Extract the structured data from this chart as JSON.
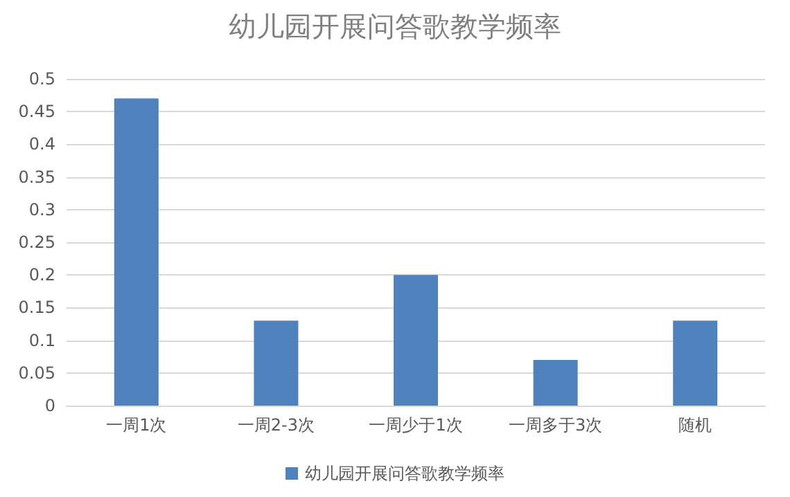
{
  "chart_data": {
    "type": "bar",
    "title": "幼儿园开展问答歌教学频率",
    "categories": [
      "一周1次",
      "一周2-3次",
      "一周少于1次",
      "一周多于3次",
      "随机"
    ],
    "series": [
      {
        "name": "幼儿园开展问答歌教学频率",
        "color": "#4f81bd",
        "values": [
          0.47,
          0.13,
          0.2,
          0.07,
          0.13
        ]
      }
    ],
    "ylim": [
      0,
      0.5
    ],
    "yticks": [
      0,
      0.05,
      0.1,
      0.15,
      0.2,
      0.25,
      0.3,
      0.35,
      0.4,
      0.45,
      0.5
    ],
    "grid": "y",
    "legend": "bottom"
  }
}
